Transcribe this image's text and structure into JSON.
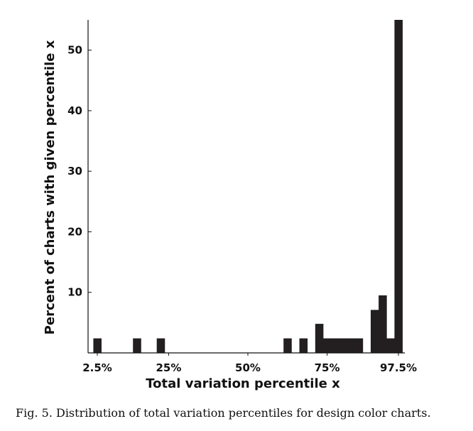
{
  "figure": {
    "caption": "Fig. 5.  Distribution of total variation percentiles for design color charts."
  },
  "chart_data": {
    "type": "bar",
    "xlabel": "Total variation percentile x",
    "ylabel": "Percent of charts with given percentile x",
    "xlim": [
      0,
      100
    ],
    "ylim": [
      0,
      55
    ],
    "x_ticks": [
      {
        "value": 2.5,
        "label": "2.5%"
      },
      {
        "value": 25,
        "label": "25%"
      },
      {
        "value": 50,
        "label": "50%"
      },
      {
        "value": 75,
        "label": "75%"
      },
      {
        "value": 97.5,
        "label": "97.5%"
      }
    ],
    "y_ticks": [
      {
        "value": 10,
        "label": "10"
      },
      {
        "value": 20,
        "label": "20"
      },
      {
        "value": 30,
        "label": "30"
      },
      {
        "value": 40,
        "label": "40"
      },
      {
        "value": 50,
        "label": "50"
      }
    ],
    "bar_color": "#231f20",
    "bin_width": 2.5,
    "bars": [
      {
        "x": 2.5,
        "value": 2.4
      },
      {
        "x": 15,
        "value": 2.4
      },
      {
        "x": 22.5,
        "value": 2.4
      },
      {
        "x": 62.5,
        "value": 2.4
      },
      {
        "x": 67.5,
        "value": 2.4
      },
      {
        "x": 72.5,
        "value": 4.8
      },
      {
        "x": 75,
        "value": 2.4
      },
      {
        "x": 77.5,
        "value": 2.4
      },
      {
        "x": 80,
        "value": 2.4
      },
      {
        "x": 82.5,
        "value": 2.4
      },
      {
        "x": 85,
        "value": 2.4
      },
      {
        "x": 90,
        "value": 7.1
      },
      {
        "x": 92.5,
        "value": 9.5
      },
      {
        "x": 95,
        "value": 2.4
      },
      {
        "x": 97.5,
        "value": 55
      }
    ]
  }
}
